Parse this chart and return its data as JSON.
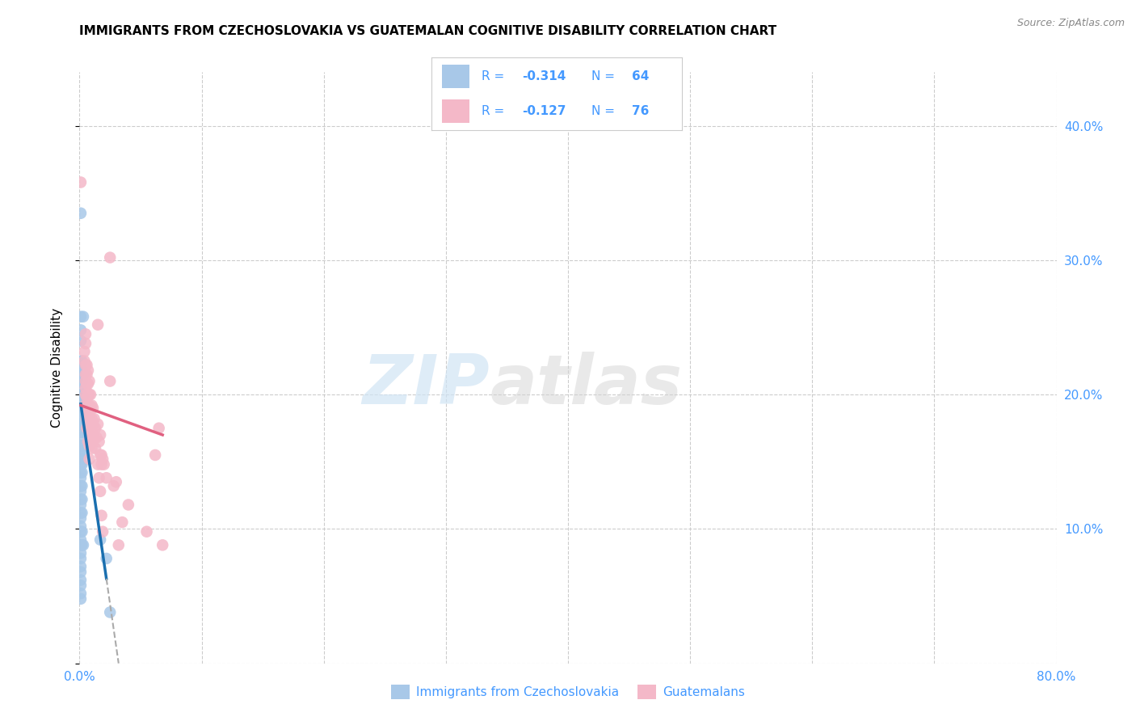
{
  "title": "IMMIGRANTS FROM CZECHOSLOVAKIA VS GUATEMALAN COGNITIVE DISABILITY CORRELATION CHART",
  "source": "Source: ZipAtlas.com",
  "ylabel": "Cognitive Disability",
  "xlim": [
    0,
    0.8
  ],
  "ylim": [
    0.0,
    0.44
  ],
  "xticks": [
    0.0,
    0.1,
    0.2,
    0.3,
    0.4,
    0.5,
    0.6,
    0.7,
    0.8
  ],
  "xticklabels": [
    "0.0%",
    "",
    "",
    "",
    "",
    "",
    "",
    "",
    "80.0%"
  ],
  "yticks": [
    0.0,
    0.1,
    0.2,
    0.3,
    0.4
  ],
  "yticklabels_right": [
    "",
    "10.0%",
    "20.0%",
    "30.0%",
    "40.0%"
  ],
  "blue_color": "#a8c8e8",
  "pink_color": "#f4b8c8",
  "blue_line_color": "#1a6faf",
  "pink_line_color": "#e06080",
  "watermark_zip": "ZIP",
  "watermark_atlas": "atlas",
  "blue_scatter": [
    [
      0.001,
      0.335
    ],
    [
      0.001,
      0.258
    ],
    [
      0.001,
      0.248
    ],
    [
      0.001,
      0.24
    ],
    [
      0.001,
      0.225
    ],
    [
      0.001,
      0.218
    ],
    [
      0.001,
      0.21
    ],
    [
      0.001,
      0.205
    ],
    [
      0.001,
      0.2
    ],
    [
      0.001,
      0.195
    ],
    [
      0.001,
      0.19
    ],
    [
      0.001,
      0.183
    ],
    [
      0.001,
      0.178
    ],
    [
      0.001,
      0.172
    ],
    [
      0.001,
      0.168
    ],
    [
      0.001,
      0.162
    ],
    [
      0.001,
      0.158
    ],
    [
      0.001,
      0.152
    ],
    [
      0.001,
      0.148
    ],
    [
      0.001,
      0.142
    ],
    [
      0.001,
      0.138
    ],
    [
      0.001,
      0.132
    ],
    [
      0.001,
      0.128
    ],
    [
      0.001,
      0.122
    ],
    [
      0.001,
      0.118
    ],
    [
      0.001,
      0.112
    ],
    [
      0.001,
      0.108
    ],
    [
      0.001,
      0.102
    ],
    [
      0.001,
      0.098
    ],
    [
      0.001,
      0.092
    ],
    [
      0.001,
      0.088
    ],
    [
      0.001,
      0.082
    ],
    [
      0.001,
      0.078
    ],
    [
      0.001,
      0.072
    ],
    [
      0.001,
      0.068
    ],
    [
      0.001,
      0.062
    ],
    [
      0.001,
      0.058
    ],
    [
      0.001,
      0.052
    ],
    [
      0.001,
      0.048
    ],
    [
      0.002,
      0.225
    ],
    [
      0.002,
      0.218
    ],
    [
      0.002,
      0.21
    ],
    [
      0.002,
      0.2
    ],
    [
      0.002,
      0.192
    ],
    [
      0.002,
      0.185
    ],
    [
      0.002,
      0.178
    ],
    [
      0.002,
      0.172
    ],
    [
      0.002,
      0.162
    ],
    [
      0.002,
      0.155
    ],
    [
      0.002,
      0.148
    ],
    [
      0.002,
      0.142
    ],
    [
      0.002,
      0.132
    ],
    [
      0.002,
      0.122
    ],
    [
      0.002,
      0.112
    ],
    [
      0.002,
      0.098
    ],
    [
      0.002,
      0.088
    ],
    [
      0.003,
      0.258
    ],
    [
      0.003,
      0.215
    ],
    [
      0.003,
      0.198
    ],
    [
      0.003,
      0.088
    ],
    [
      0.017,
      0.092
    ],
    [
      0.022,
      0.078
    ],
    [
      0.025,
      0.038
    ]
  ],
  "pink_scatter": [
    [
      0.001,
      0.358
    ],
    [
      0.004,
      0.232
    ],
    [
      0.004,
      0.225
    ],
    [
      0.005,
      0.245
    ],
    [
      0.005,
      0.238
    ],
    [
      0.005,
      0.222
    ],
    [
      0.005,
      0.215
    ],
    [
      0.005,
      0.21
    ],
    [
      0.005,
      0.205
    ],
    [
      0.005,
      0.2
    ],
    [
      0.005,
      0.192
    ],
    [
      0.006,
      0.222
    ],
    [
      0.006,
      0.215
    ],
    [
      0.006,
      0.208
    ],
    [
      0.006,
      0.198
    ],
    [
      0.006,
      0.19
    ],
    [
      0.006,
      0.182
    ],
    [
      0.006,
      0.175
    ],
    [
      0.007,
      0.218
    ],
    [
      0.007,
      0.208
    ],
    [
      0.007,
      0.2
    ],
    [
      0.007,
      0.192
    ],
    [
      0.007,
      0.185
    ],
    [
      0.007,
      0.175
    ],
    [
      0.007,
      0.165
    ],
    [
      0.008,
      0.21
    ],
    [
      0.008,
      0.2
    ],
    [
      0.008,
      0.192
    ],
    [
      0.008,
      0.182
    ],
    [
      0.008,
      0.172
    ],
    [
      0.008,
      0.162
    ],
    [
      0.008,
      0.152
    ],
    [
      0.009,
      0.2
    ],
    [
      0.009,
      0.19
    ],
    [
      0.009,
      0.18
    ],
    [
      0.009,
      0.168
    ],
    [
      0.01,
      0.192
    ],
    [
      0.01,
      0.182
    ],
    [
      0.01,
      0.172
    ],
    [
      0.01,
      0.16
    ],
    [
      0.011,
      0.19
    ],
    [
      0.011,
      0.178
    ],
    [
      0.011,
      0.165
    ],
    [
      0.012,
      0.182
    ],
    [
      0.012,
      0.168
    ],
    [
      0.013,
      0.175
    ],
    [
      0.013,
      0.16
    ],
    [
      0.014,
      0.168
    ],
    [
      0.015,
      0.252
    ],
    [
      0.015,
      0.178
    ],
    [
      0.015,
      0.148
    ],
    [
      0.016,
      0.165
    ],
    [
      0.016,
      0.138
    ],
    [
      0.017,
      0.17
    ],
    [
      0.017,
      0.155
    ],
    [
      0.017,
      0.128
    ],
    [
      0.018,
      0.155
    ],
    [
      0.018,
      0.148
    ],
    [
      0.018,
      0.11
    ],
    [
      0.019,
      0.152
    ],
    [
      0.019,
      0.098
    ],
    [
      0.02,
      0.148
    ],
    [
      0.022,
      0.138
    ],
    [
      0.025,
      0.302
    ],
    [
      0.025,
      0.21
    ],
    [
      0.028,
      0.132
    ],
    [
      0.03,
      0.135
    ],
    [
      0.032,
      0.088
    ],
    [
      0.035,
      0.105
    ],
    [
      0.04,
      0.118
    ],
    [
      0.055,
      0.098
    ],
    [
      0.062,
      0.155
    ],
    [
      0.065,
      0.175
    ],
    [
      0.068,
      0.088
    ]
  ],
  "blue_trendline_solid": [
    [
      0.001,
      0.193
    ],
    [
      0.022,
      0.063
    ]
  ],
  "blue_trendline_dashed": [
    [
      0.022,
      0.063
    ],
    [
      0.032,
      0.0
    ]
  ],
  "pink_trendline": [
    [
      0.001,
      0.192
    ],
    [
      0.068,
      0.17
    ]
  ]
}
